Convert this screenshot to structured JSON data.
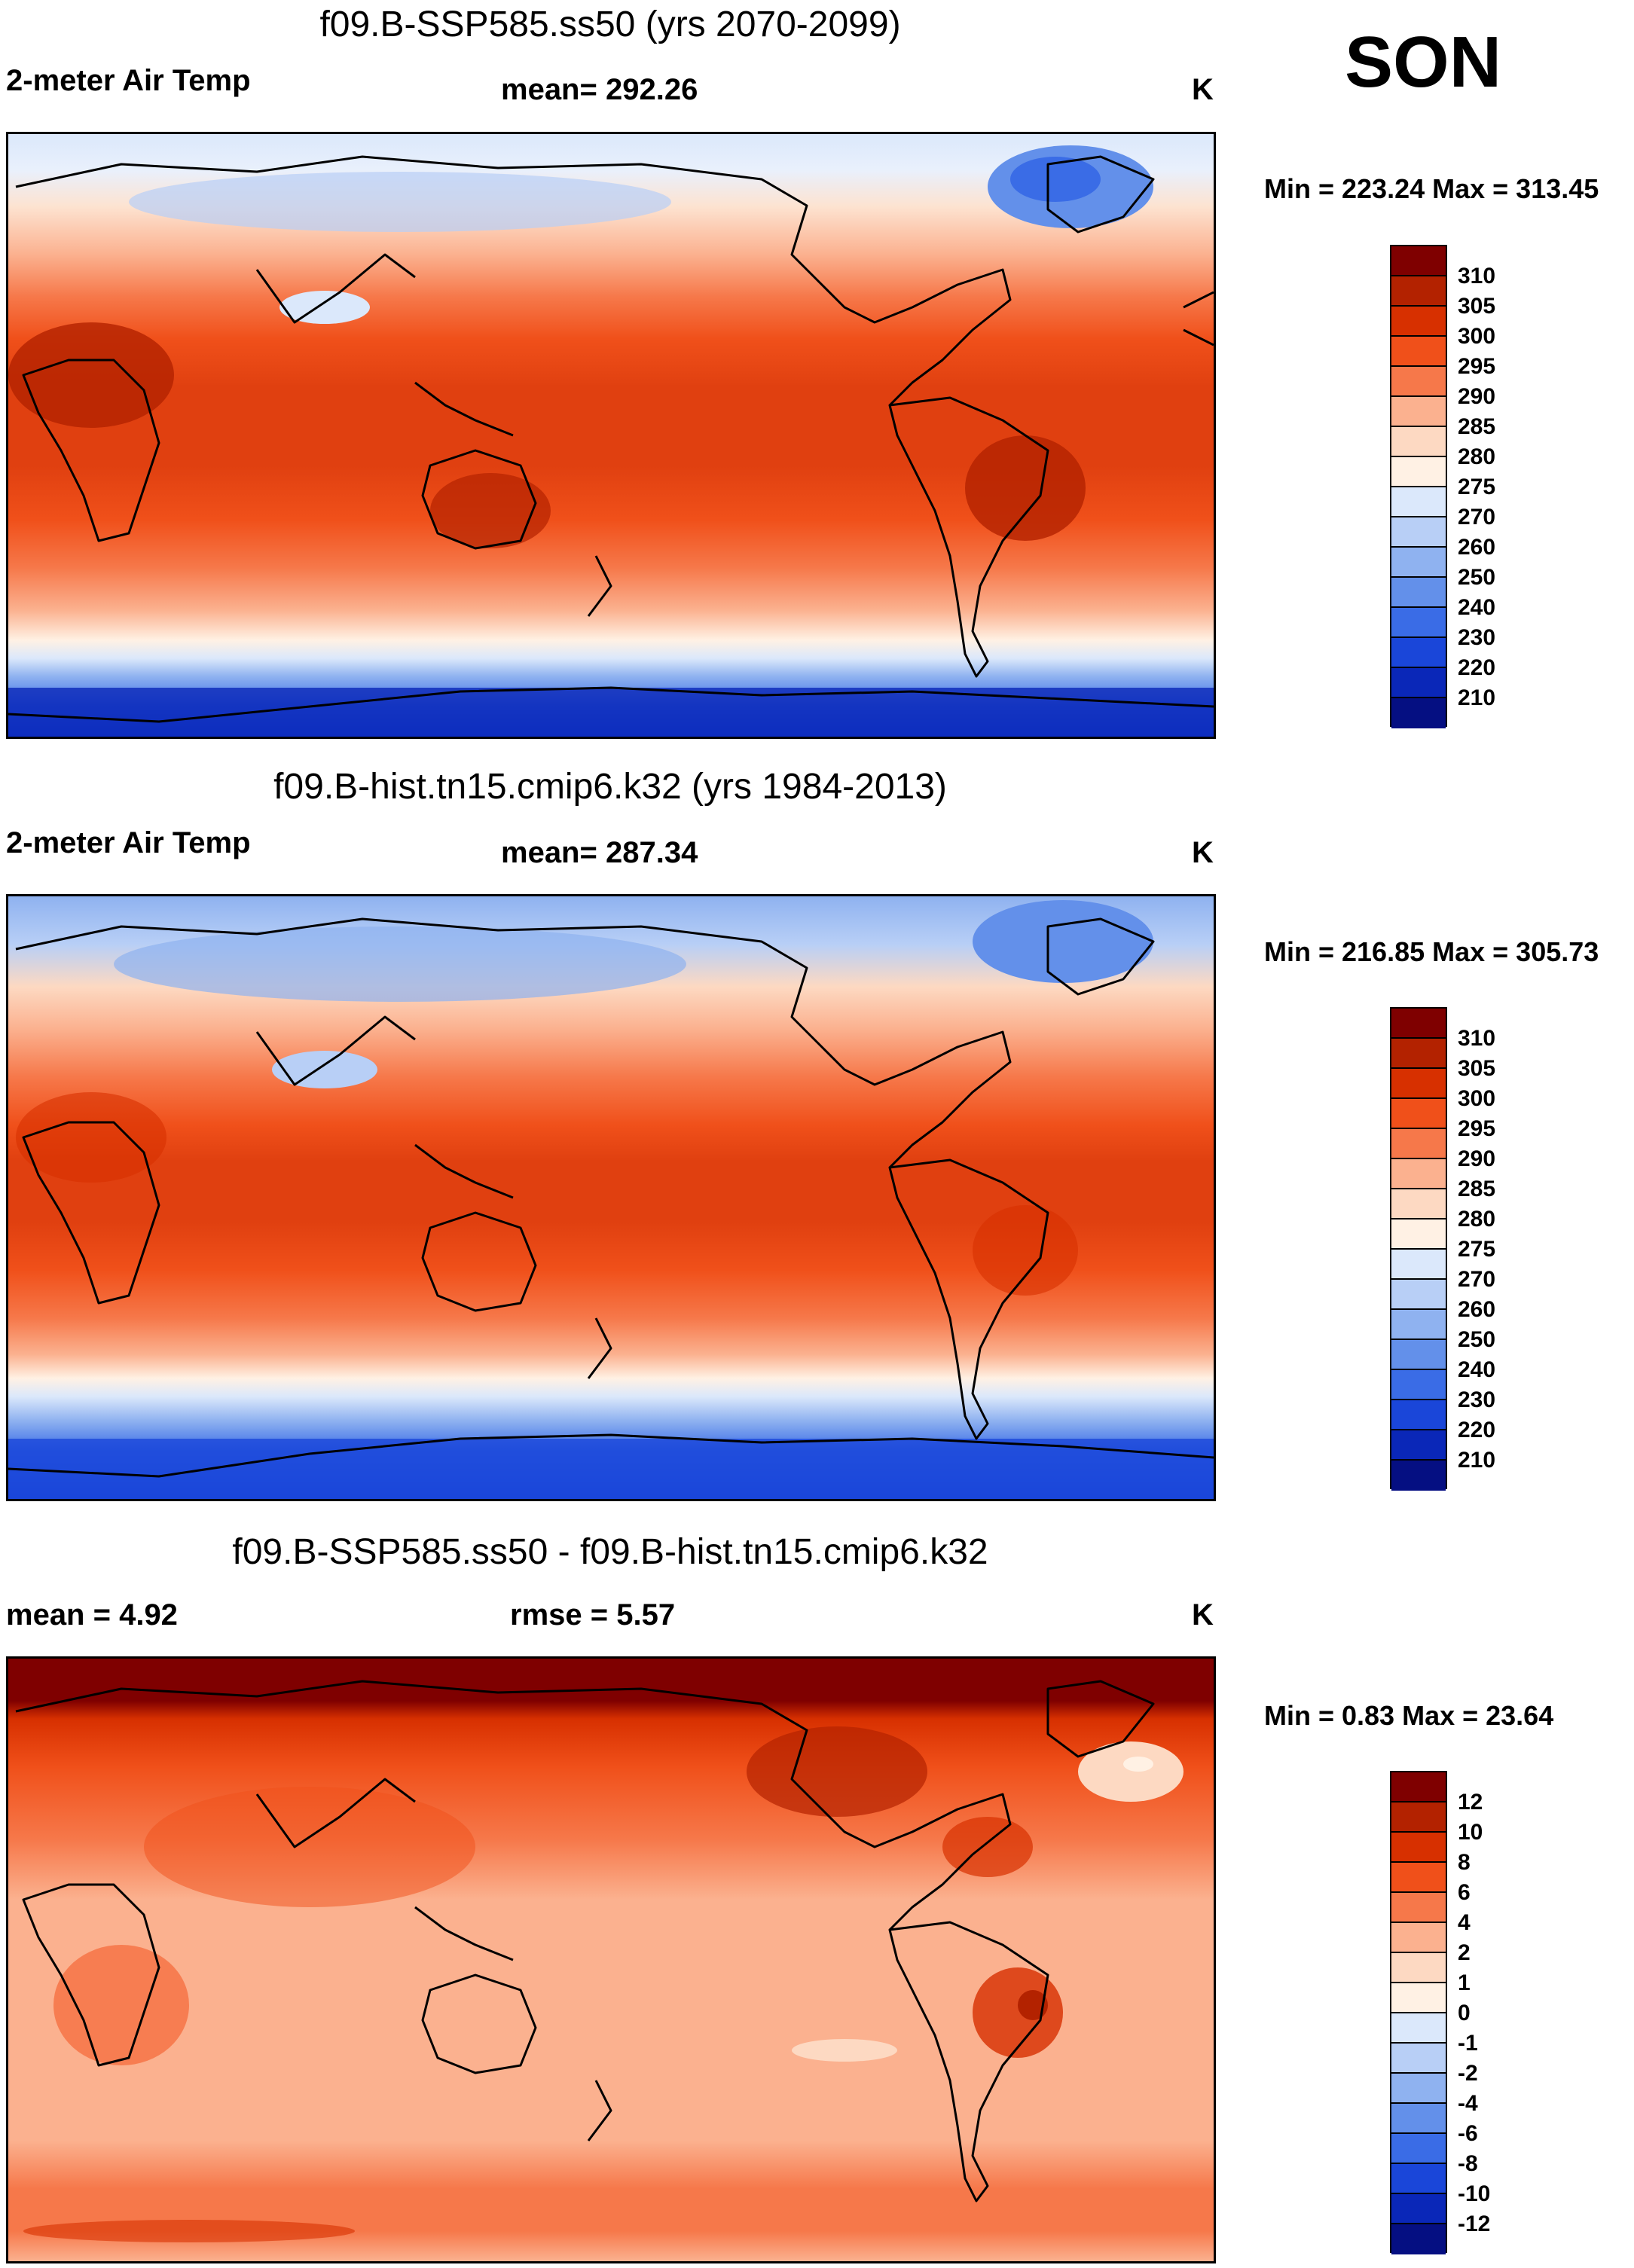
{
  "season": "SON",
  "panels": [
    {
      "title": "f09.B-SSP585.ss50 (yrs 2070-2099)",
      "left_label": "2-meter Air Temp",
      "center_label": "mean= 292.26",
      "units": "K",
      "minmax": "Min = 223.24 Max = 313.45"
    },
    {
      "title": "f09.B-hist.tn15.cmip6.k32 (yrs 1984-2013)",
      "left_label": "2-meter Air Temp",
      "center_label": "mean= 287.34",
      "units": "K",
      "minmax": "Min = 216.85 Max = 305.73"
    },
    {
      "title": "f09.B-SSP585.ss50 - f09.B-hist.tn15.cmip6.k32",
      "left_label": "mean =   4.92",
      "center_label": "rmse =   5.57",
      "units": "K",
      "minmax": "Min =   0.83 Max =  23.64"
    }
  ],
  "colorbars": {
    "absolute": {
      "ticks": [
        "310",
        "305",
        "300",
        "295",
        "290",
        "285",
        "280",
        "275",
        "270",
        "260",
        "250",
        "240",
        "230",
        "220",
        "210"
      ],
      "colors": [
        "#7f0000",
        "#b32200",
        "#d73000",
        "#f0501a",
        "#f6784a",
        "#fbb18f",
        "#fdd9c2",
        "#fff1e4",
        "#dbe8fb",
        "#b8cff6",
        "#8fb2f0",
        "#6390ea",
        "#3a6ce6",
        "#1a46d9",
        "#0a27b8",
        "#050f82"
      ]
    },
    "difference": {
      "ticks": [
        "12",
        "10",
        "8",
        "6",
        "4",
        "2",
        "1",
        "0",
        "-1",
        "-2",
        "-4",
        "-6",
        "-8",
        "-10",
        "-12"
      ],
      "colors": [
        "#7f0000",
        "#b32200",
        "#d73000",
        "#f0501a",
        "#f6784a",
        "#fbb18f",
        "#fdd9c2",
        "#fff1e4",
        "#dbe8fb",
        "#b8cff6",
        "#8fb2f0",
        "#6390ea",
        "#3a6ce6",
        "#1a46d9",
        "#0a27b8",
        "#050f82"
      ]
    }
  }
}
